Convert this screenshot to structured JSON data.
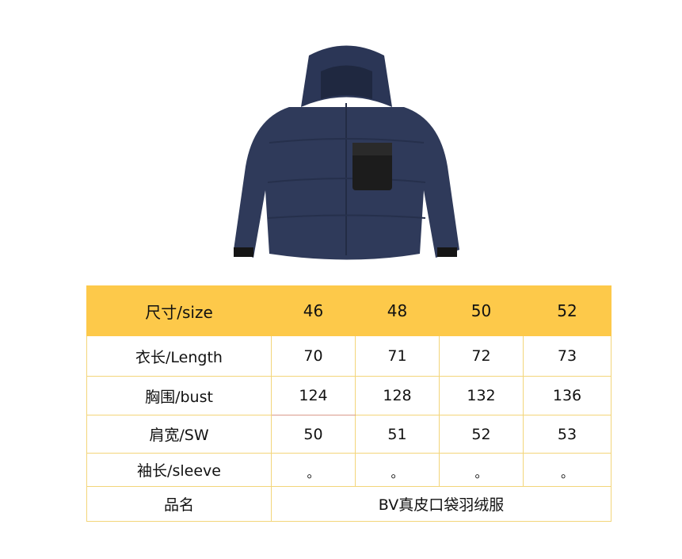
{
  "product_image": {
    "subject": "navy hooded down jacket with black leather chest pocket",
    "colors": {
      "body": "#2f3a5a",
      "pocket": "#1c1c1c"
    }
  },
  "table": {
    "header": {
      "label": "尺寸/size",
      "sizes": [
        "46",
        "48",
        "50",
        "52"
      ]
    },
    "rows": [
      {
        "label": "衣长/Length",
        "values": [
          "70",
          "71",
          "72",
          "73"
        ]
      },
      {
        "label": "胸围/bust",
        "values": [
          "124",
          "128",
          "132",
          "136"
        ]
      },
      {
        "label": "肩宽/SW",
        "values": [
          "50",
          "51",
          "52",
          "53"
        ]
      },
      {
        "label": "袖长/sleeve",
        "values": [
          "。",
          "。",
          "。",
          "。"
        ]
      }
    ],
    "name_row": {
      "label": "品名",
      "value": "BV真皮口袋羽绒服"
    },
    "colors": {
      "header_bg": "#fdc94a",
      "border": "#f3d57a"
    }
  }
}
